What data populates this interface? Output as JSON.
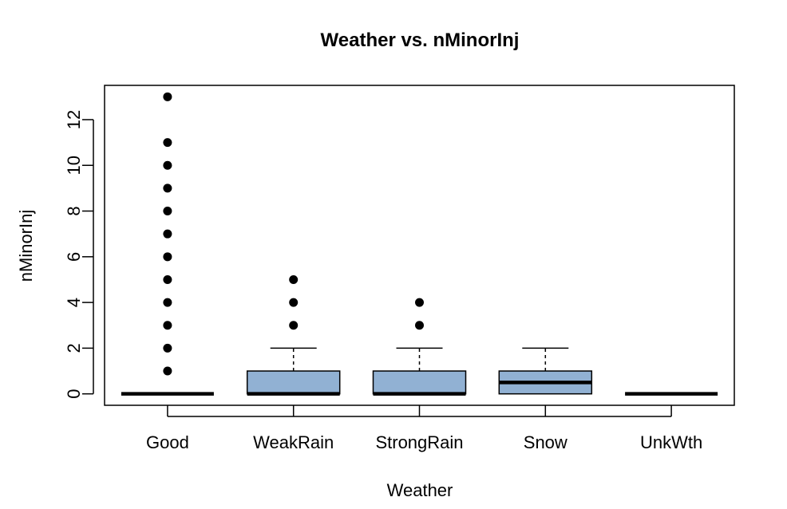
{
  "chart_data": {
    "type": "boxplot",
    "title": "Weather  vs. nMinorInj",
    "xlabel": "Weather",
    "ylabel": "nMinorInj",
    "ylim": [
      -0.5,
      13.5
    ],
    "yticks": [
      0,
      2,
      4,
      6,
      8,
      10,
      12
    ],
    "grid": false,
    "box_color": "#91B1D3",
    "categories": [
      "Good",
      "WeakRain",
      "StrongRain",
      "Snow",
      "UnkWth"
    ],
    "boxes": [
      {
        "name": "Good",
        "q1": 0,
        "median": 0,
        "q3": 0,
        "whisker_low": 0,
        "whisker_high": 0,
        "outliers": [
          1,
          2,
          3,
          4,
          5,
          6,
          7,
          8,
          9,
          10,
          11,
          13
        ]
      },
      {
        "name": "WeakRain",
        "q1": 0,
        "median": 0,
        "q3": 1,
        "whisker_low": 0,
        "whisker_high": 2,
        "outliers": [
          3,
          4,
          5
        ]
      },
      {
        "name": "StrongRain",
        "q1": 0,
        "median": 0,
        "q3": 1,
        "whisker_low": 0,
        "whisker_high": 2,
        "outliers": [
          3,
          4
        ]
      },
      {
        "name": "Snow",
        "q1": 0,
        "median": 0.5,
        "q3": 1,
        "whisker_low": 0,
        "whisker_high": 2,
        "outliers": []
      },
      {
        "name": "UnkWth",
        "q1": 0,
        "median": 0,
        "q3": 0,
        "whisker_low": 0,
        "whisker_high": 0,
        "outliers": []
      }
    ]
  }
}
